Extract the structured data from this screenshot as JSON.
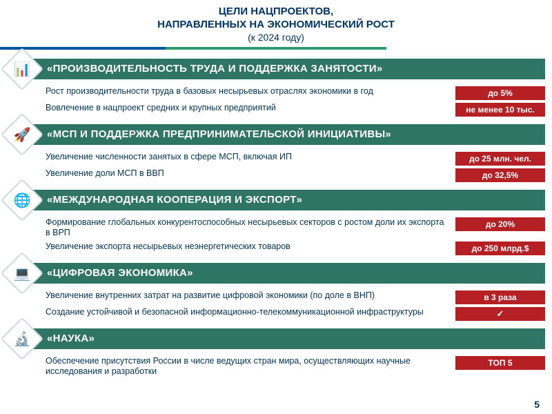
{
  "header": {
    "line1": "ЦЕЛИ НАЦПРОЕКТОВ,",
    "line2": "НАПРАВЛЕННЫХ НА ЭКОНОМИЧЕСКИЙ РОСТ",
    "line3": "(к 2024 году)"
  },
  "colors": {
    "title_bg_green": "#2e7566",
    "title_bg_blue": "#0055a5",
    "badge_bg": "#b52025",
    "text": "#003355"
  },
  "sections": [
    {
      "title": "«ПРОИЗВОДИТЕЛЬНОСТЬ ТРУДА И ПОДДЕРЖКА ЗАНЯТОСТИ»",
      "title_bg": "#2e7566",
      "icon": "📊",
      "rows": [
        {
          "text": "Рост производительности труда в базовых несырьевых отраслях экономики в год",
          "badge": "до 5%"
        },
        {
          "text": "Вовлечение в нацпроект средних и крупных предприятий",
          "badge": "не менее 10 тыс."
        }
      ]
    },
    {
      "title": "«МСП И ПОДДЕРЖКА ПРЕДПРИНИМАТЕЛЬСКОЙ ИНИЦИАТИВЫ»",
      "title_bg": "#2e7566",
      "icon": "🚀",
      "rows": [
        {
          "text": "Увеличение численности занятых в сфере МСП, включая ИП",
          "badge": "до 25 млн. чел."
        },
        {
          "text": "Увеличение доли МСП в ВВП",
          "badge": "до 32,5%"
        }
      ]
    },
    {
      "title": "«МЕЖДУНАРОДНАЯ КООПЕРАЦИЯ И ЭКСПОРТ»",
      "title_bg": "#2e7566",
      "icon": "🌐",
      "rows": [
        {
          "text": "Формирование глобальных конкурентоспособных несырьевых секторов с ростом доли их экспорта в ВРП",
          "badge": "до 20%"
        },
        {
          "text": "Увеличение экспорта несырьевых неэнергетических товаров",
          "badge": "до 250 млрд.$"
        }
      ]
    },
    {
      "title": "«ЦИФРОВАЯ ЭКОНОМИКА»",
      "title_bg": "#2e7566",
      "icon": "💻",
      "rows": [
        {
          "text": "Увеличение внутренних затрат на развитие цифровой экономики (по доле в ВНП)",
          "badge": "в 3 раза"
        },
        {
          "text": "Создание устойчивой и безопасной информационно-телекоммуникационной инфраструктуры",
          "badge": "✓"
        }
      ]
    },
    {
      "title": "«НАУКА»",
      "title_bg": "#2e7566",
      "icon": "🔬",
      "rows": [
        {
          "text": "Обеспечение присутствия России в числе ведущих стран мира, осуществляющих научные исследования и разработки",
          "badge": "ТОП 5"
        }
      ]
    }
  ],
  "page_number": "5"
}
